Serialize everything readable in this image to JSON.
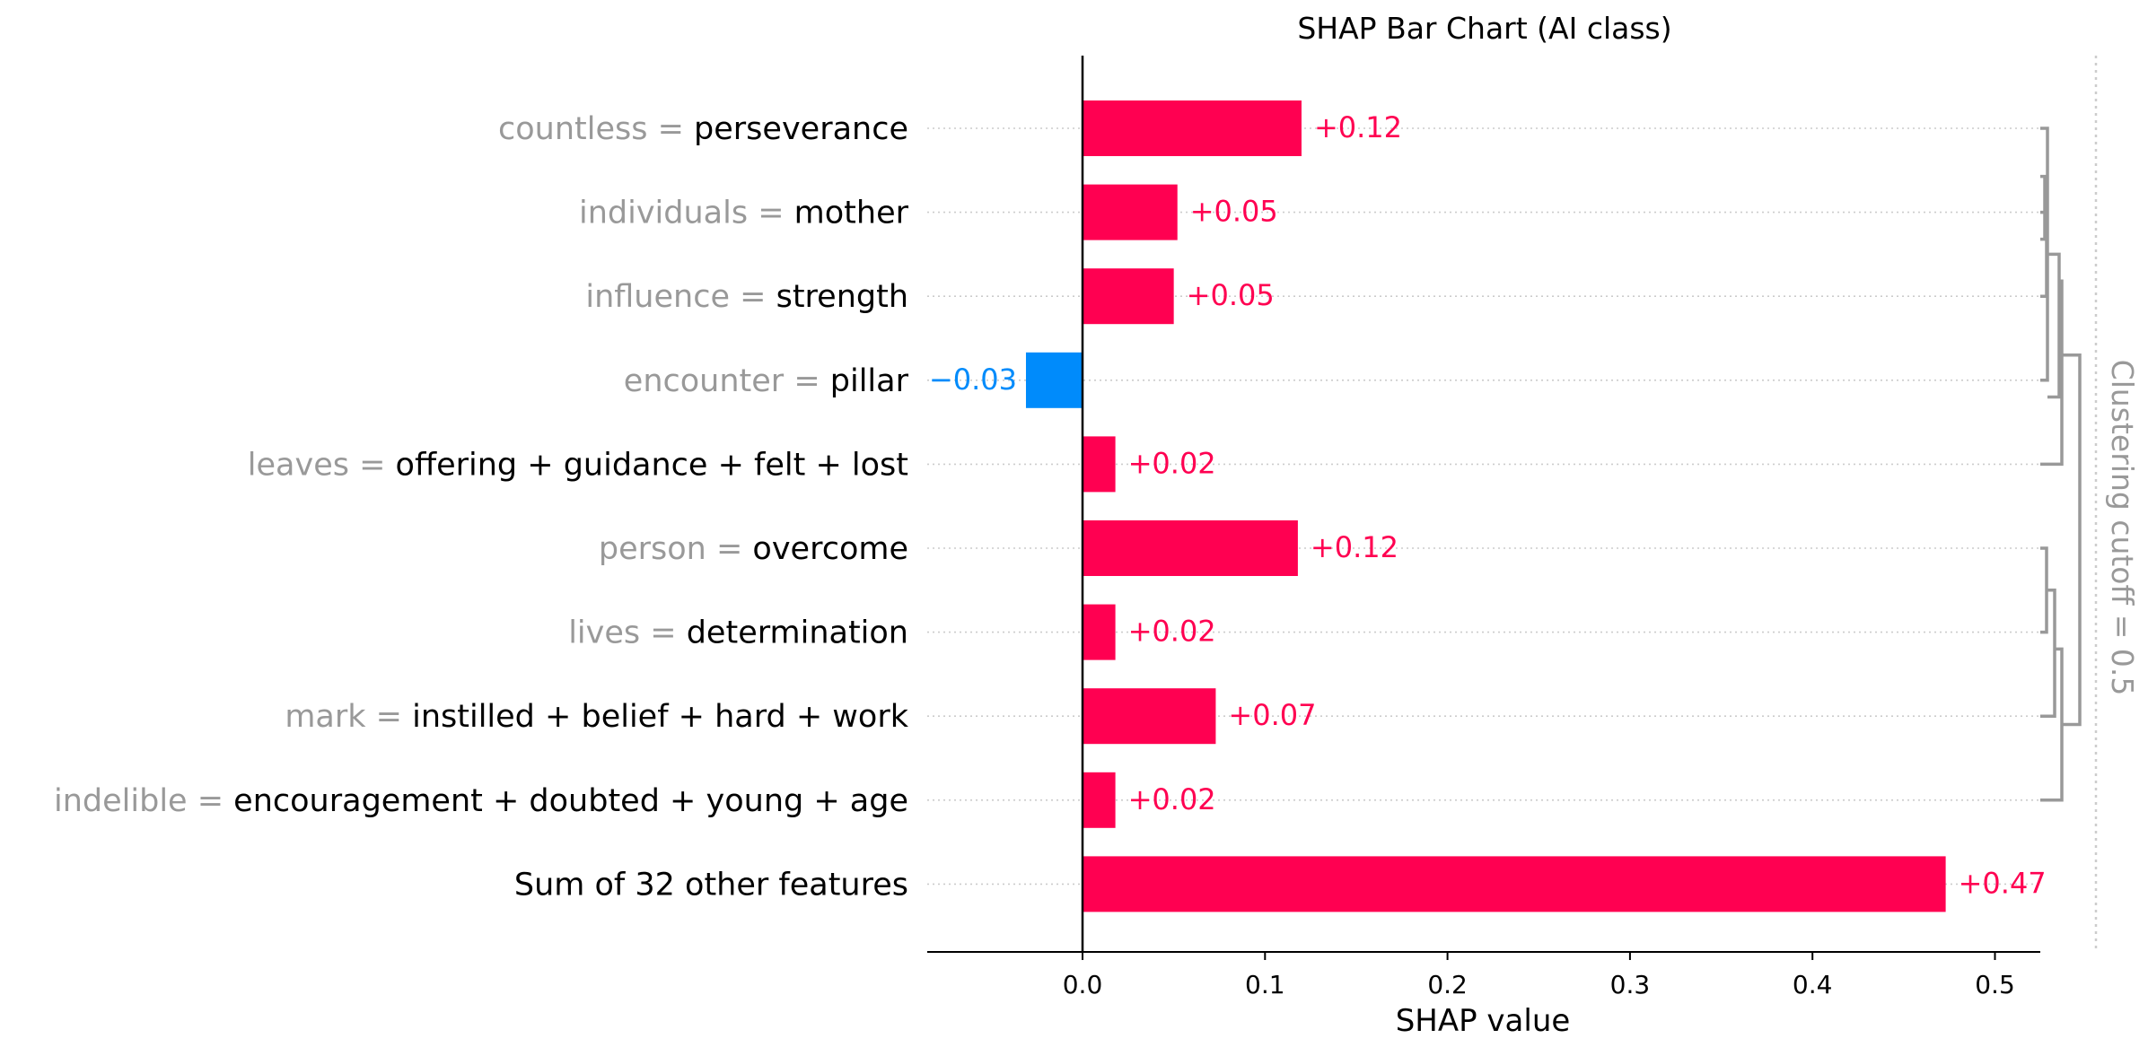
{
  "chart_data": {
    "type": "bar",
    "title": "SHAP Bar Chart (AI class)",
    "xlabel": "SHAP value",
    "xlim": [
      -0.085,
      0.527
    ],
    "xticks": [
      "0.0",
      "0.1",
      "0.2",
      "0.3",
      "0.4",
      "0.5"
    ],
    "xtick_values": [
      0,
      0.1,
      0.2,
      0.3,
      0.4,
      0.5
    ],
    "grid": false,
    "colors": {
      "positive": "#ff0051",
      "negative": "#008bfb",
      "feature_name": "#999999",
      "value_name": "#000000",
      "dendrogram": "#999999"
    },
    "features": [
      {
        "name": "countless",
        "value": "perseverance",
        "shap": 0.12,
        "label": "+0.12"
      },
      {
        "name": "individuals",
        "value": "mother",
        "shap": 0.052,
        "label": "+0.05"
      },
      {
        "name": "influence",
        "value": "strength",
        "shap": 0.05,
        "label": "+0.05"
      },
      {
        "name": "encounter",
        "value": "pillar",
        "shap": -0.031,
        "label": "−0.03"
      },
      {
        "name": "leaves",
        "value": "offering + guidance + felt + lost",
        "shap": 0.018,
        "label": "+0.02"
      },
      {
        "name": "person",
        "value": "overcome",
        "shap": 0.118,
        "label": "+0.12"
      },
      {
        "name": "lives",
        "value": "determination",
        "shap": 0.018,
        "label": "+0.02"
      },
      {
        "name": "mark",
        "value": "instilled + belief + hard + work",
        "shap": 0.073,
        "label": "+0.07"
      },
      {
        "name": "indelible",
        "value": "encouragement + doubted + young + age",
        "shap": 0.018,
        "label": "+0.02"
      },
      {
        "name": "",
        "value": "Sum of 32 other features",
        "shap": 0.473,
        "label": "+0.47"
      }
    ],
    "cluster_label": "Clustering cutoff = 0.5"
  }
}
